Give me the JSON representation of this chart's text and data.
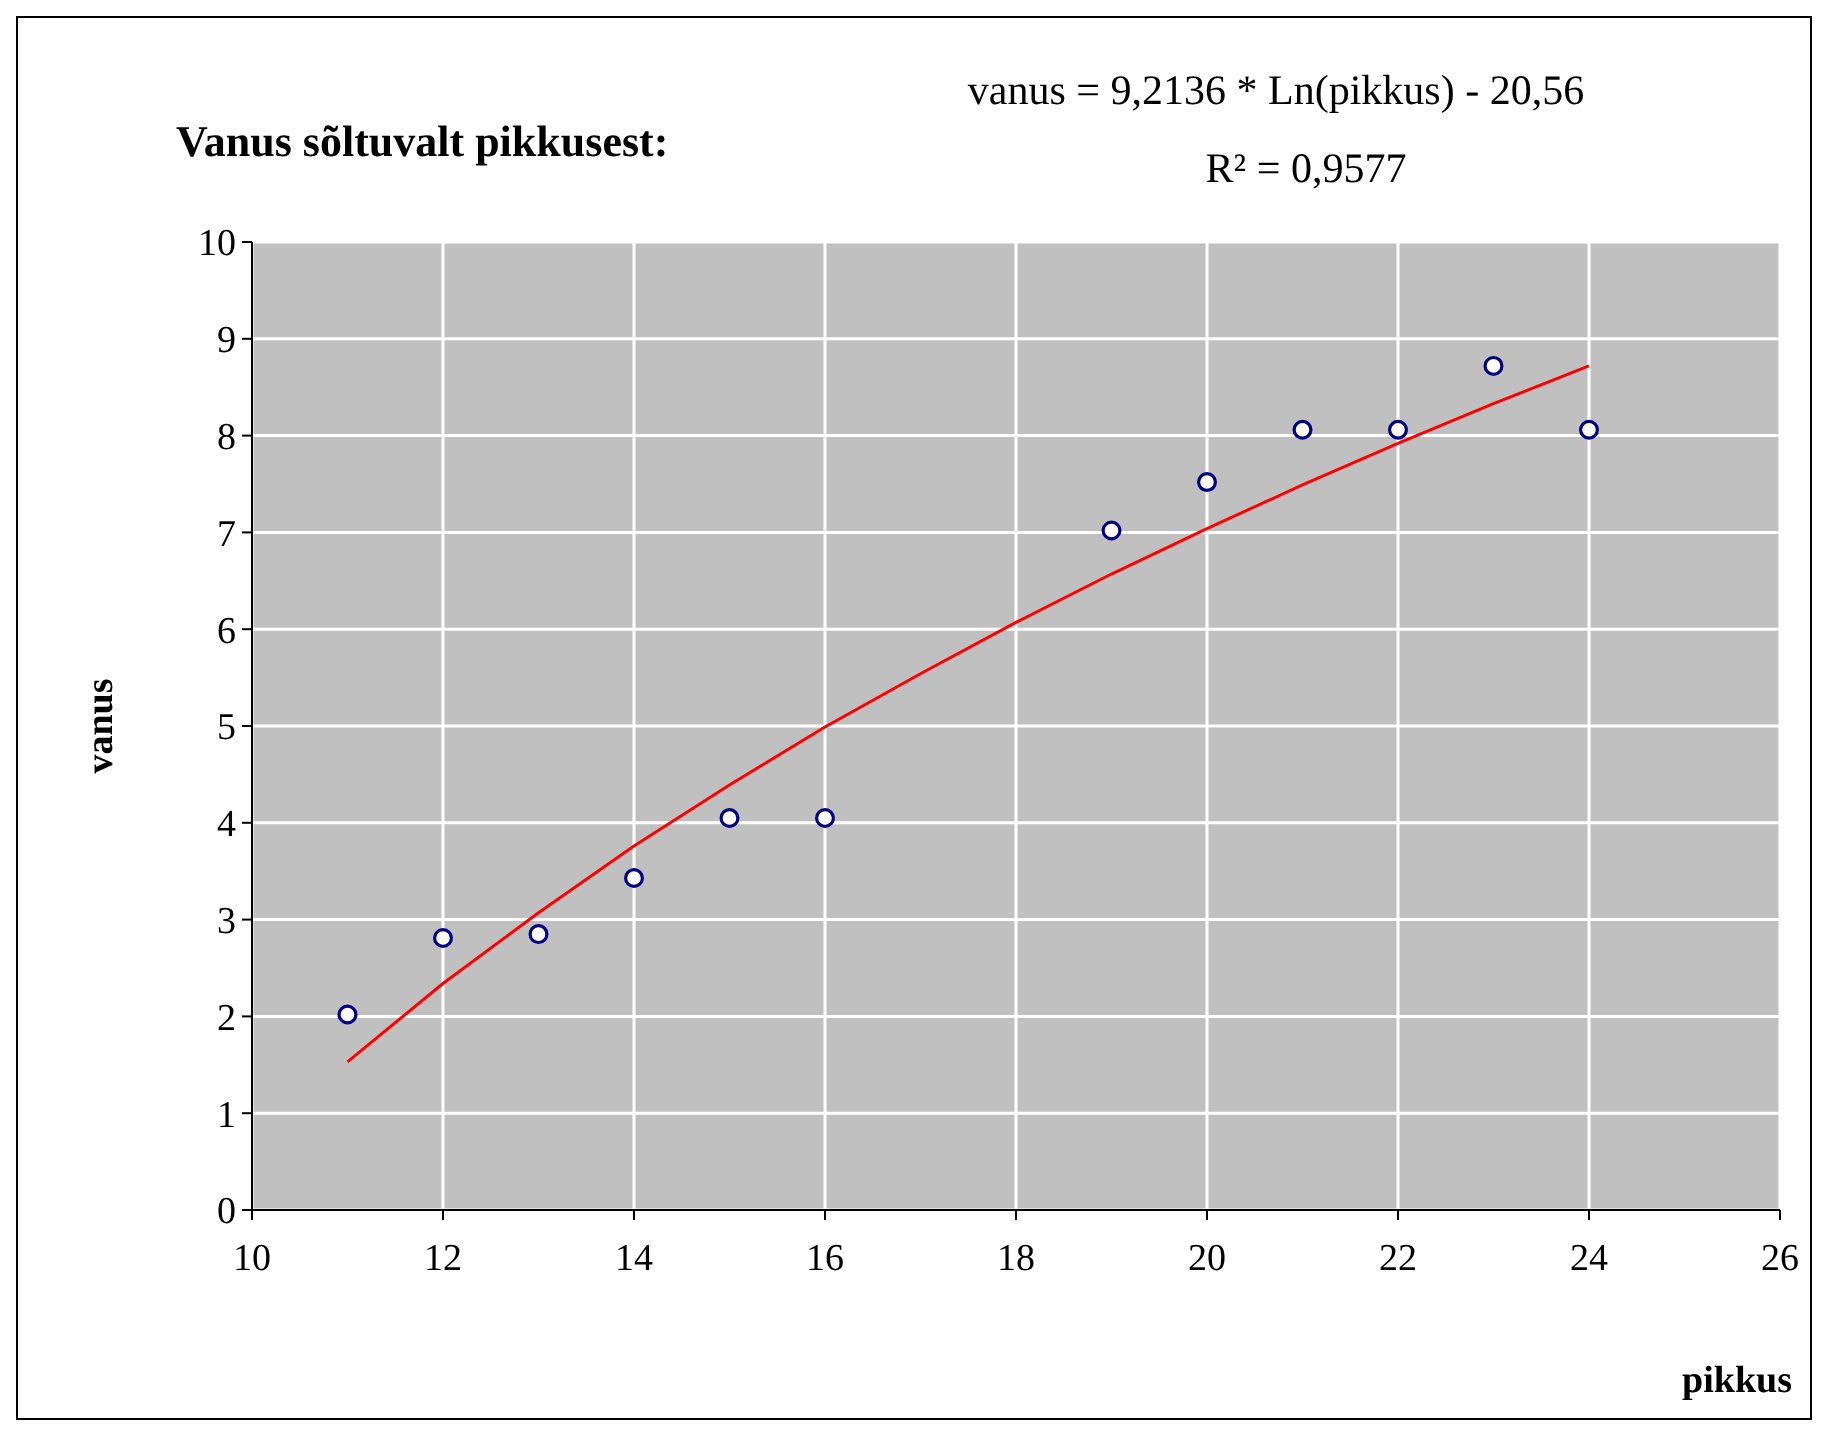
{
  "chart_data": {
    "type": "scatter",
    "title": "Vanus sõltuvalt pikkusest:",
    "xlabel": "pikkus",
    "ylabel": "vanus",
    "annotations": [
      "vanus = 9,2136 * Ln(pikkus) - 20,56",
      "R² = 0,9577"
    ],
    "xlim": [
      10,
      26
    ],
    "xticks": [
      10,
      12,
      14,
      16,
      18,
      20,
      22,
      24,
      26
    ],
    "ylim": [
      0,
      10
    ],
    "yticks": [
      0,
      1,
      2,
      3,
      4,
      5,
      6,
      7,
      8,
      9,
      10
    ],
    "grid": true,
    "series": [
      {
        "color": "#000080",
        "marker": "circle",
        "x": [
          11,
          12,
          13,
          14,
          15,
          16,
          19,
          20,
          21,
          22,
          23,
          24
        ],
        "values": [
          2.02,
          2.81,
          2.85,
          3.43,
          4.05,
          4.05,
          7.02,
          7.52,
          8.06,
          8.06,
          8.72,
          8.06
        ]
      },
      {
        "type": "line",
        "color": "#ff0000",
        "marker": "none",
        "line_style": "solid",
        "x": [
          11,
          12,
          13,
          14,
          15,
          16,
          17,
          18,
          19,
          20,
          21,
          22,
          23,
          24
        ],
        "values": [
          1.53,
          2.34,
          3.07,
          3.76,
          4.39,
          4.99,
          5.54,
          6.07,
          6.57,
          7.04,
          7.49,
          7.92,
          8.33,
          8.72
        ]
      }
    ]
  }
}
